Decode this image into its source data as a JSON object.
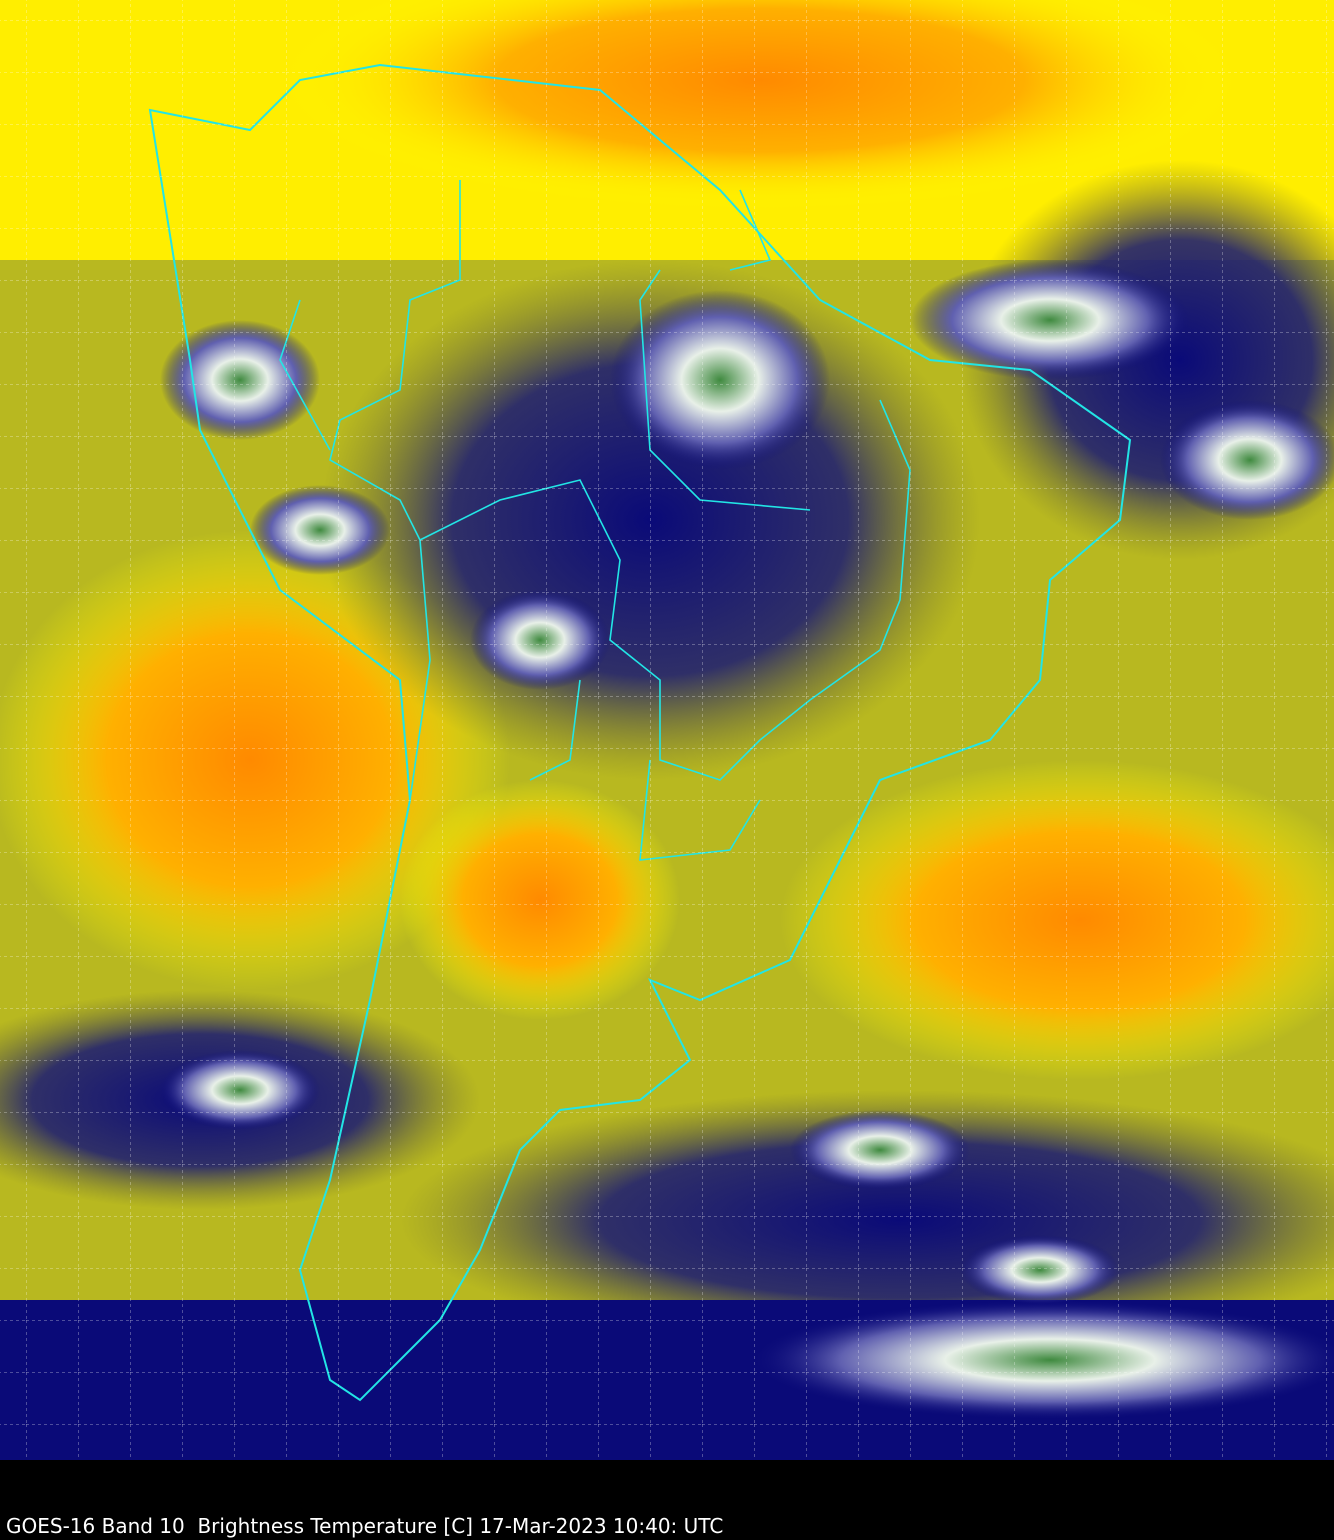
{
  "caption": "GOES-16 Band 10  Brightness Temperature [C] 17-Mar-2023 10:40: UTC",
  "colors": {
    "warm_orange": "#ff9a00",
    "yellow": "#ffff00",
    "olive": "#7a7a20",
    "cold_blue": "#0a0a78",
    "cloud_white": "#ffffff",
    "cloud_green": "#3f8a3f",
    "border_cyan": "#22e5e5",
    "grid": "#ffffff"
  }
}
